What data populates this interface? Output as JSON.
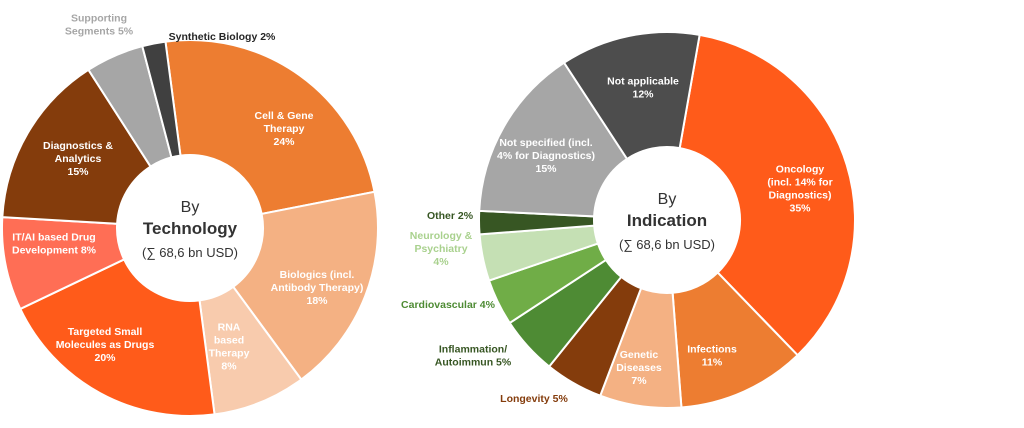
{
  "chart_data": [
    {
      "type": "pie",
      "variant": "donut",
      "center": {
        "line1": "By",
        "line2": "Technology",
        "line3": "(∑ 68,6 bn USD)"
      },
      "slices": [
        {
          "label": [
            "Cell & Gene",
            "Therapy",
            "24%"
          ],
          "value": 24,
          "color": "#ED7D31",
          "label_color": "#ffffff"
        },
        {
          "label": [
            "Biologics (incl.",
            "Antibody Therapy)",
            "18%"
          ],
          "value": 18,
          "color": "#F4B183",
          "label_color": "#ffffff"
        },
        {
          "label": [
            "RNA",
            "based",
            "Therapy",
            "8%"
          ],
          "value": 8,
          "color": "#F8CBAD",
          "label_color": "#ffffff"
        },
        {
          "label": [
            "Targeted Small",
            "Molecules as Drugs",
            "20%"
          ],
          "value": 20,
          "color": "#FF5B1A",
          "label_color": "#ffffff"
        },
        {
          "label": [
            "IT/AI based Drug",
            "Development 8%"
          ],
          "value": 8,
          "color": "#FF6E55",
          "label_color": "#ffffff"
        },
        {
          "label": [
            "Diagnostics &",
            "Analytics",
            "15%"
          ],
          "value": 15,
          "color": "#843C0C",
          "label_color": "#ffffff"
        },
        {
          "label": [
            "Supporting",
            "Segments 5%"
          ],
          "value": 5,
          "color": "#A6A6A6",
          "label_color": "#A6A6A6"
        },
        {
          "label": [
            "Synthetic Biology 2%"
          ],
          "value": 2,
          "color": "#404040",
          "label_color": "#262626"
        }
      ]
    },
    {
      "type": "pie",
      "variant": "donut",
      "center": {
        "line1": "By",
        "line2": "Indication",
        "line3": "(∑ 68,6 bn USD)"
      },
      "slices": [
        {
          "label": [
            "Oncology",
            "(incl. 14% for",
            "Diagnostics)",
            "35%"
          ],
          "value": 35,
          "color": "#FF5B1A",
          "label_color": "#ffffff"
        },
        {
          "label": [
            "Infections",
            "11%"
          ],
          "value": 11,
          "color": "#ED7D31",
          "label_color": "#ffffff"
        },
        {
          "label": [
            "Genetic",
            "Diseases",
            "7%"
          ],
          "value": 7,
          "color": "#F4B183",
          "label_color": "#ffffff"
        },
        {
          "label": [
            "Longevity 5%"
          ],
          "value": 5,
          "color": "#843C0C",
          "label_color": "#843C0C"
        },
        {
          "label": [
            "Inflammation/",
            "Autoimmun 5%"
          ],
          "value": 5,
          "color": "#4E8B34",
          "label_color": "#375623"
        },
        {
          "label": [
            "Cardiovascular 4%"
          ],
          "value": 4,
          "color": "#70AD47",
          "label_color": "#4E8B34"
        },
        {
          "label": [
            "Neurology &",
            "Psychiatry",
            "4%"
          ],
          "value": 4,
          "color": "#C5E0B4",
          "label_color": "#A9D18E"
        },
        {
          "label": [
            "Other 2%"
          ],
          "value": 2,
          "color": "#375623",
          "label_color": "#375623"
        },
        {
          "label": [
            "Not specified (incl.",
            "4% for Diagnostics)",
            "15%"
          ],
          "value": 15,
          "color": "#A6A6A6",
          "label_color": "#ffffff"
        },
        {
          "label": [
            "Not applicable",
            "12%"
          ],
          "value": 12,
          "color": "#4D4D4D",
          "label_color": "#ffffff"
        }
      ]
    }
  ]
}
